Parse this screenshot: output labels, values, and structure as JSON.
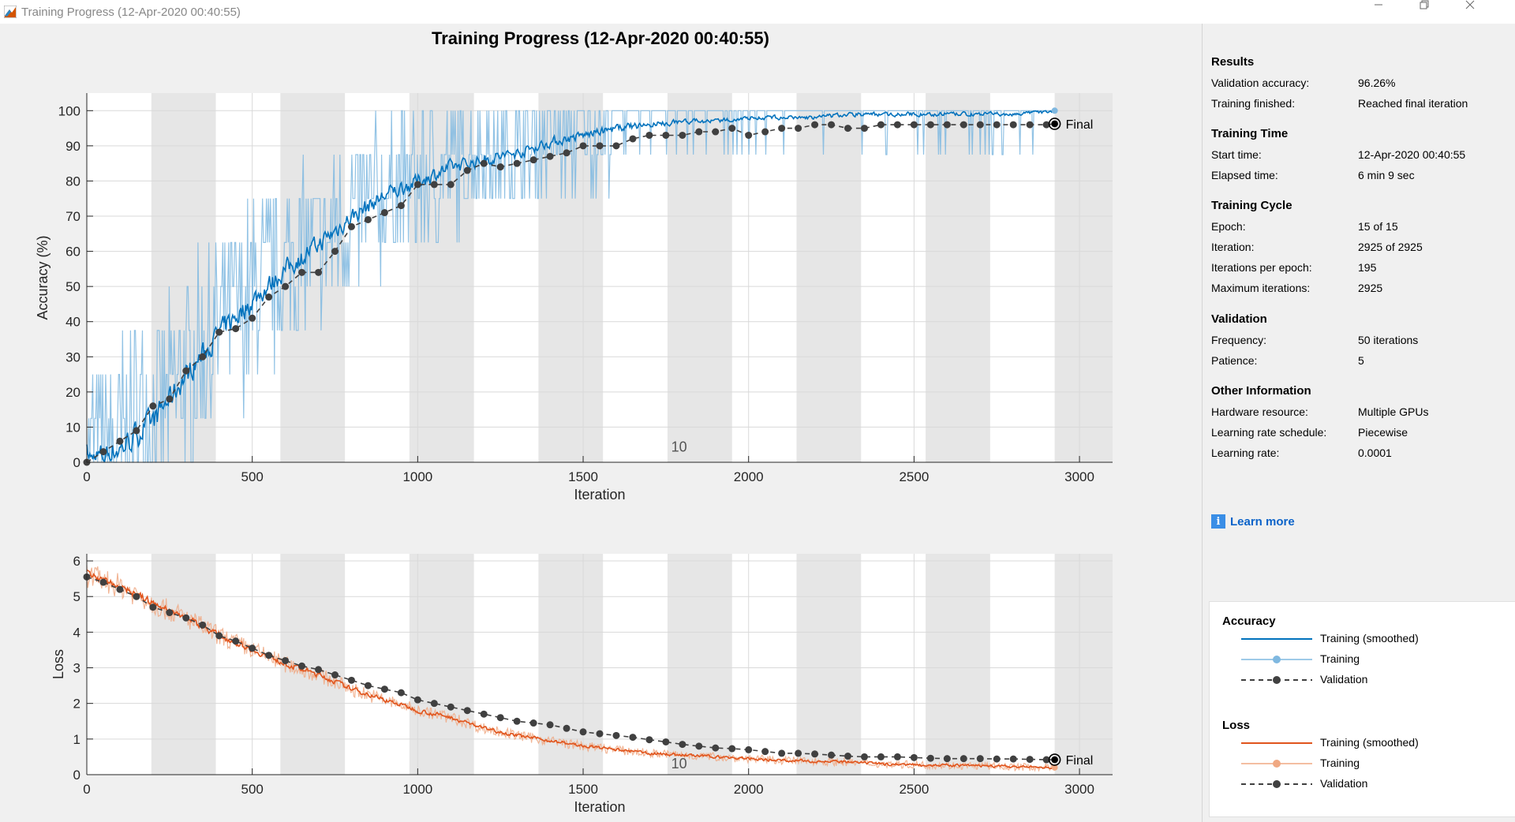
{
  "window": {
    "title": "Training Progress (12-Apr-2020 00:40:55)"
  },
  "figure": {
    "title": "Training Progress (12-Apr-2020 00:40:55)",
    "epoch_marker": "10",
    "final_label": "Final"
  },
  "colors": {
    "acc_smooth": "#0072bd",
    "acc_raw": "#7fb8e0",
    "loss_smooth": "#e0541c",
    "loss_raw": "#f0a882",
    "validation": "#404040",
    "band": "#e6e6e6"
  },
  "chart_data": [
    {
      "type": "line",
      "title": "",
      "xlabel": "Iteration",
      "ylabel": "Accuracy (%)",
      "xlim": [
        0,
        3100
      ],
      "ylim": [
        0,
        105
      ],
      "xticks": [
        0,
        500,
        1000,
        1500,
        2000,
        2500,
        3000
      ],
      "yticks": [
        0,
        10,
        20,
        30,
        40,
        50,
        60,
        70,
        80,
        90,
        100
      ],
      "iterations_per_epoch": 195,
      "series": [
        {
          "name": "Training (smoothed)",
          "x": [
            0,
            100,
            200,
            300,
            400,
            500,
            600,
            700,
            800,
            900,
            1000,
            1100,
            1200,
            1300,
            1400,
            1500,
            1600,
            1700,
            1800,
            1900,
            2000,
            2100,
            2200,
            2300,
            2400,
            2500,
            2600,
            2700,
            2800,
            2925
          ],
          "values": [
            0,
            4,
            12,
            25,
            37,
            46,
            55,
            62,
            70,
            76,
            80,
            84,
            86,
            88,
            91,
            93,
            95,
            96,
            97,
            97,
            98,
            98,
            98,
            99,
            99,
            99,
            99,
            99,
            99,
            100
          ]
        },
        {
          "name": "Training",
          "x": [
            0,
            100,
            200,
            300,
            400,
            500,
            600,
            700,
            800,
            900,
            1000,
            1100,
            1200,
            1300,
            1400,
            1500,
            1600,
            1700,
            1800,
            1900,
            2000,
            2100,
            2200,
            2300,
            2400,
            2500,
            2600,
            2700,
            2800,
            2925
          ],
          "values": [
            0,
            5,
            12,
            25,
            38,
            47,
            55,
            62,
            70,
            76,
            80,
            84,
            87,
            88,
            91,
            93,
            95,
            96,
            97,
            97,
            98,
            98,
            98,
            99,
            99,
            99,
            99,
            99,
            99,
            100
          ]
        },
        {
          "name": "Validation",
          "x": [
            0,
            50,
            100,
            150,
            200,
            250,
            300,
            350,
            400,
            450,
            500,
            550,
            600,
            650,
            700,
            750,
            800,
            850,
            900,
            950,
            1000,
            1050,
            1100,
            1150,
            1200,
            1250,
            1300,
            1350,
            1400,
            1450,
            1500,
            1550,
            1600,
            1650,
            1700,
            1750,
            1800,
            1850,
            1900,
            1950,
            2000,
            2050,
            2100,
            2150,
            2200,
            2250,
            2300,
            2350,
            2400,
            2450,
            2500,
            2550,
            2600,
            2650,
            2700,
            2750,
            2800,
            2850,
            2900,
            2925
          ],
          "values": [
            0,
            3,
            6,
            9,
            16,
            18,
            26,
            30,
            37,
            38,
            41,
            47,
            50,
            54,
            54,
            60,
            67,
            69,
            71,
            73,
            79,
            79,
            79,
            83,
            85,
            84,
            85,
            86,
            87,
            88,
            90,
            90,
            90,
            92,
            93,
            93,
            93,
            94,
            94,
            95,
            93,
            94,
            95,
            95,
            96,
            96,
            95,
            95,
            96,
            96,
            96,
            96,
            96,
            96,
            96,
            96,
            96,
            96,
            96,
            96.26
          ]
        }
      ]
    },
    {
      "type": "line",
      "title": "",
      "xlabel": "Iteration",
      "ylabel": "Loss",
      "xlim": [
        0,
        3100
      ],
      "ylim": [
        0,
        6.2
      ],
      "xticks": [
        0,
        500,
        1000,
        1500,
        2000,
        2500,
        3000
      ],
      "yticks": [
        0,
        1,
        2,
        3,
        4,
        5,
        6
      ],
      "series": [
        {
          "name": "Training (smoothed)",
          "x": [
            0,
            100,
            200,
            300,
            400,
            500,
            600,
            700,
            800,
            900,
            1000,
            1100,
            1200,
            1300,
            1400,
            1500,
            1600,
            1700,
            1800,
            1900,
            2000,
            2100,
            2200,
            2300,
            2400,
            2500,
            2600,
            2700,
            2800,
            2925
          ],
          "values": [
            5.6,
            5.3,
            4.8,
            4.4,
            3.9,
            3.5,
            3.1,
            2.8,
            2.4,
            2.1,
            1.8,
            1.6,
            1.3,
            1.1,
            0.95,
            0.8,
            0.7,
            0.6,
            0.55,
            0.5,
            0.45,
            0.4,
            0.38,
            0.35,
            0.3,
            0.28,
            0.26,
            0.25,
            0.22,
            0.2
          ]
        },
        {
          "name": "Training",
          "x": [
            0,
            100,
            200,
            300,
            400,
            500,
            600,
            700,
            800,
            900,
            1000,
            1100,
            1200,
            1300,
            1400,
            1500,
            1600,
            1700,
            1800,
            1900,
            2000,
            2100,
            2200,
            2300,
            2400,
            2500,
            2600,
            2700,
            2800,
            2925
          ],
          "values": [
            5.6,
            5.3,
            4.8,
            4.4,
            3.9,
            3.5,
            3.1,
            2.8,
            2.4,
            2.1,
            1.8,
            1.6,
            1.3,
            1.1,
            0.95,
            0.8,
            0.7,
            0.6,
            0.55,
            0.5,
            0.45,
            0.4,
            0.38,
            0.35,
            0.3,
            0.28,
            0.26,
            0.25,
            0.22,
            0.2
          ]
        },
        {
          "name": "Validation",
          "x": [
            0,
            50,
            100,
            150,
            200,
            250,
            300,
            350,
            400,
            450,
            500,
            550,
            600,
            650,
            700,
            750,
            800,
            850,
            900,
            950,
            1000,
            1050,
            1100,
            1150,
            1200,
            1250,
            1300,
            1350,
            1400,
            1450,
            1500,
            1550,
            1600,
            1650,
            1700,
            1750,
            1800,
            1850,
            1900,
            1950,
            2000,
            2050,
            2100,
            2150,
            2200,
            2250,
            2300,
            2350,
            2400,
            2450,
            2500,
            2550,
            2600,
            2650,
            2700,
            2750,
            2800,
            2850,
            2900,
            2925
          ],
          "values": [
            5.55,
            5.4,
            5.2,
            5.0,
            4.7,
            4.55,
            4.4,
            4.2,
            3.9,
            3.75,
            3.55,
            3.35,
            3.2,
            3.05,
            2.95,
            2.8,
            2.65,
            2.5,
            2.4,
            2.3,
            2.1,
            2.0,
            1.9,
            1.8,
            1.7,
            1.6,
            1.5,
            1.45,
            1.4,
            1.3,
            1.2,
            1.15,
            1.1,
            1.05,
            0.98,
            0.92,
            0.85,
            0.8,
            0.75,
            0.73,
            0.7,
            0.65,
            0.6,
            0.6,
            0.58,
            0.55,
            0.52,
            0.5,
            0.5,
            0.5,
            0.48,
            0.46,
            0.45,
            0.45,
            0.45,
            0.44,
            0.44,
            0.43,
            0.42,
            0.42
          ]
        }
      ]
    }
  ],
  "results": {
    "title": "Results",
    "rows": [
      [
        "Validation accuracy:",
        "96.26%"
      ],
      [
        "Training finished:",
        "Reached final iteration"
      ]
    ]
  },
  "training_time": {
    "title": "Training Time",
    "rows": [
      [
        "Start time:",
        "12-Apr-2020 00:40:55"
      ],
      [
        "Elapsed time:",
        "6 min 9 sec"
      ]
    ]
  },
  "training_cycle": {
    "title": "Training Cycle",
    "rows": [
      [
        "Epoch:",
        "15 of 15"
      ],
      [
        "Iteration:",
        "2925 of 2925"
      ],
      [
        "Iterations per epoch:",
        "195"
      ],
      [
        "Maximum iterations:",
        "2925"
      ]
    ]
  },
  "validation": {
    "title": "Validation",
    "rows": [
      [
        "Frequency:",
        "50 iterations"
      ],
      [
        "Patience:",
        "5"
      ]
    ]
  },
  "other_info": {
    "title": "Other Information",
    "rows": [
      [
        "Hardware resource:",
        "Multiple GPUs"
      ],
      [
        "Learning rate schedule:",
        "Piecewise"
      ],
      [
        "Learning rate:",
        "0.0001"
      ]
    ]
  },
  "learn_more": {
    "label": "Learn more",
    "icon": "info-icon"
  },
  "legend": {
    "accuracy_title": "Accuracy",
    "loss_title": "Loss",
    "items": [
      "Training (smoothed)",
      "Training",
      "Validation"
    ]
  }
}
